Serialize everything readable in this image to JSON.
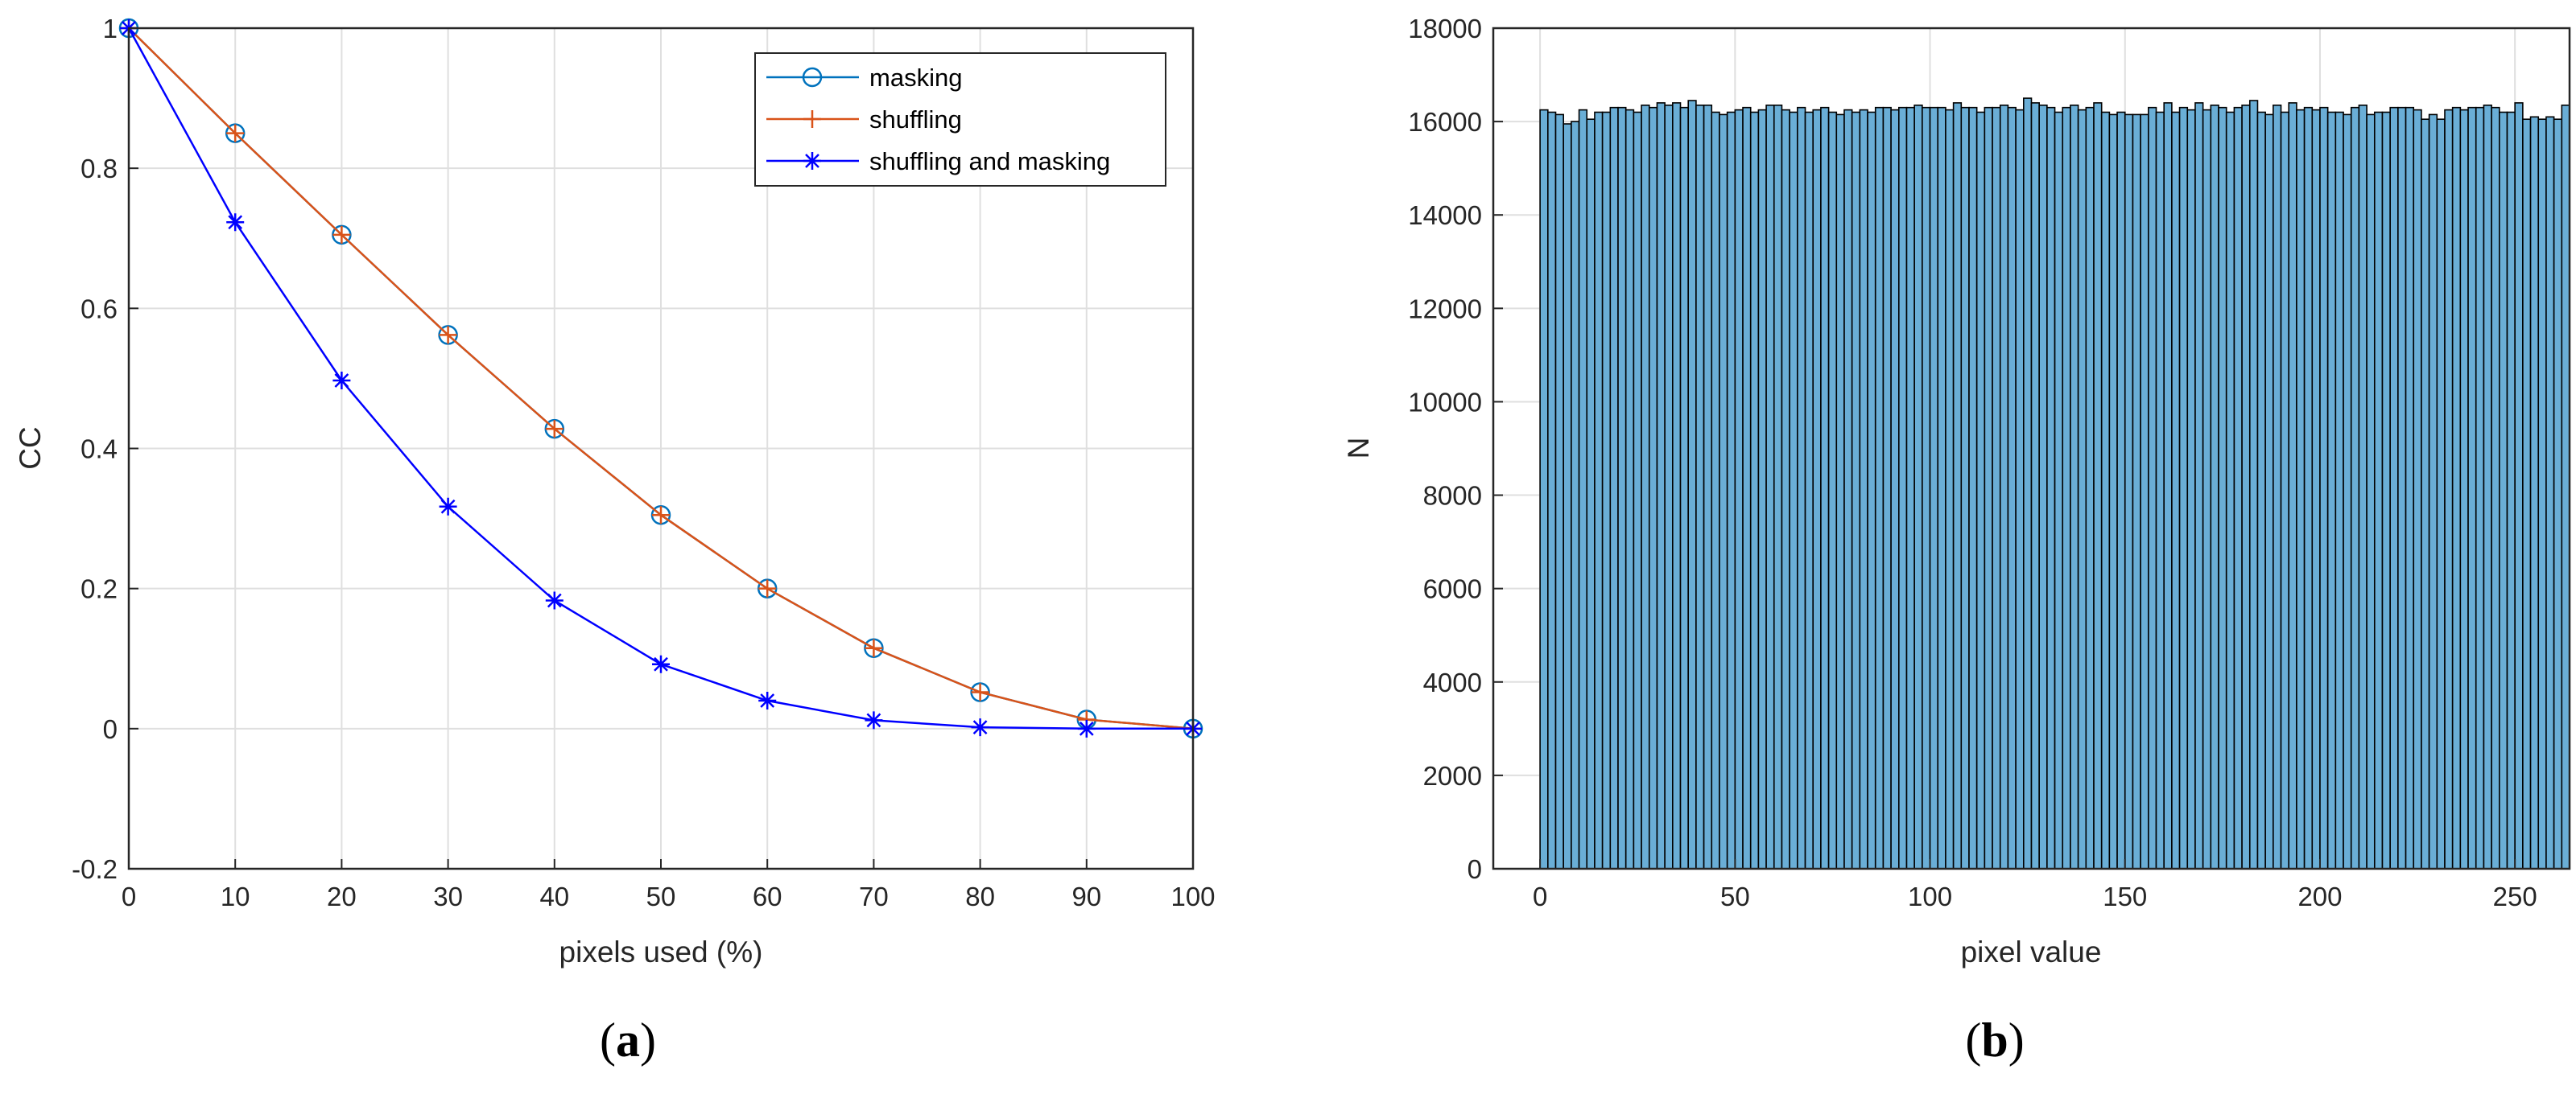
{
  "chart_data": [
    {
      "type": "line",
      "caption_open": "(",
      "caption_letter": "a",
      "caption_close": ")",
      "xlabel": "pixels used (%)",
      "ylabel": "CC",
      "xlim": [
        0,
        100
      ],
      "ylim": [
        -0.2,
        1
      ],
      "x_ticks": [
        0,
        10,
        20,
        30,
        40,
        50,
        60,
        70,
        80,
        90,
        100
      ],
      "y_ticks": [
        -0.2,
        0,
        0.2,
        0.4,
        0.6,
        0.8,
        1
      ],
      "y_tick_labels": [
        "-0.2",
        "0",
        "0.2",
        "0.4",
        "0.6",
        "0.8",
        "1"
      ],
      "grid": true,
      "legend_position": "top-right",
      "x": [
        0,
        10,
        20,
        30,
        40,
        50,
        60,
        70,
        80,
        90,
        100
      ],
      "series": [
        {
          "name": "masking",
          "color": "#0072BD",
          "marker": "circle",
          "values": [
            1.0,
            0.85,
            0.705,
            0.562,
            0.428,
            0.305,
            0.2,
            0.115,
            0.052,
            0.013,
            0.0
          ]
        },
        {
          "name": "shuffling",
          "color": "#D95319",
          "marker": "plus",
          "values": [
            1.0,
            0.85,
            0.705,
            0.562,
            0.428,
            0.305,
            0.2,
            0.115,
            0.052,
            0.013,
            0.0
          ]
        },
        {
          "name": "shuffling and masking",
          "color": "#0000FF",
          "marker": "asterisk",
          "values": [
            1.0,
            0.723,
            0.497,
            0.317,
            0.183,
            0.092,
            0.04,
            0.012,
            0.002,
            0.0,
            0.0
          ]
        }
      ]
    },
    {
      "type": "bar",
      "caption_open": "(",
      "caption_letter": "b",
      "caption_close": ")",
      "xlabel": "pixel value",
      "ylabel": "N",
      "xlim": [
        -12,
        264
      ],
      "ylim": [
        0,
        18000
      ],
      "x_ticks": [
        0,
        50,
        100,
        150,
        200,
        250
      ],
      "y_ticks": [
        0,
        2000,
        4000,
        6000,
        8000,
        10000,
        12000,
        14000,
        16000,
        18000
      ],
      "grid": true,
      "bar_color": "#4DBEEE",
      "bar_face_color": "#6AAED6",
      "bar_edge_color": "#000000",
      "bin_start": 0,
      "bin_width": 2,
      "values": [
        16250,
        16200,
        16150,
        15950,
        16000,
        16250,
        16050,
        16200,
        16200,
        16300,
        16300,
        16250,
        16200,
        16350,
        16300,
        16400,
        16350,
        16400,
        16300,
        16450,
        16350,
        16350,
        16200,
        16150,
        16200,
        16250,
        16300,
        16200,
        16250,
        16350,
        16350,
        16250,
        16200,
        16300,
        16200,
        16250,
        16300,
        16200,
        16150,
        16250,
        16200,
        16250,
        16200,
        16300,
        16300,
        16250,
        16300,
        16300,
        16350,
        16300,
        16300,
        16300,
        16250,
        16400,
        16300,
        16300,
        16200,
        16300,
        16300,
        16350,
        16300,
        16250,
        16500,
        16400,
        16350,
        16300,
        16200,
        16300,
        16350,
        16250,
        16300,
        16400,
        16200,
        16150,
        16200,
        16150,
        16150,
        16150,
        16300,
        16200,
        16400,
        16200,
        16300,
        16250,
        16400,
        16250,
        16350,
        16300,
        16200,
        16300,
        16350,
        16450,
        16200,
        16150,
        16350,
        16200,
        16400,
        16250,
        16300,
        16250,
        16300,
        16200,
        16200,
        16150,
        16300,
        16350,
        16150,
        16200,
        16200,
        16300,
        16300,
        16300,
        16250,
        16050,
        16150,
        16050,
        16250,
        16300,
        16250,
        16300,
        16300,
        16350,
        16300,
        16200,
        16200,
        16400,
        16050,
        16100,
        16050,
        16100,
        16050,
        16350
      ]
    }
  ]
}
